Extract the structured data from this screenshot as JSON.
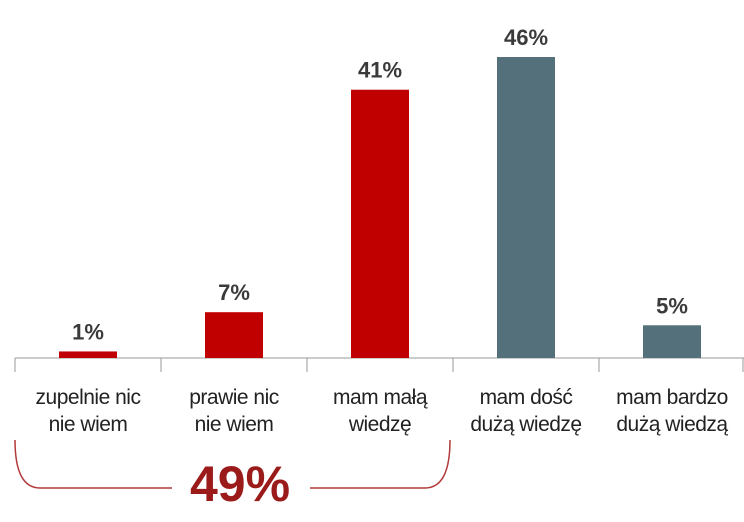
{
  "chart_data": {
    "type": "bar",
    "categories": [
      "zupelnie nic\nnie wiem",
      "prawie nic\nnie wiem",
      "mam małą\nwiedzę",
      "mam dość\ndużą wiedzę",
      "mam bardzo\ndużą wiedzą"
    ],
    "values": [
      1,
      7,
      41,
      46,
      5
    ],
    "value_labels": [
      "1%",
      "7%",
      "41%",
      "46%",
      "5%"
    ],
    "colors": [
      "#c00000",
      "#c00000",
      "#c00000",
      "#54707a",
      "#54707a"
    ],
    "annotation": "49%"
  }
}
